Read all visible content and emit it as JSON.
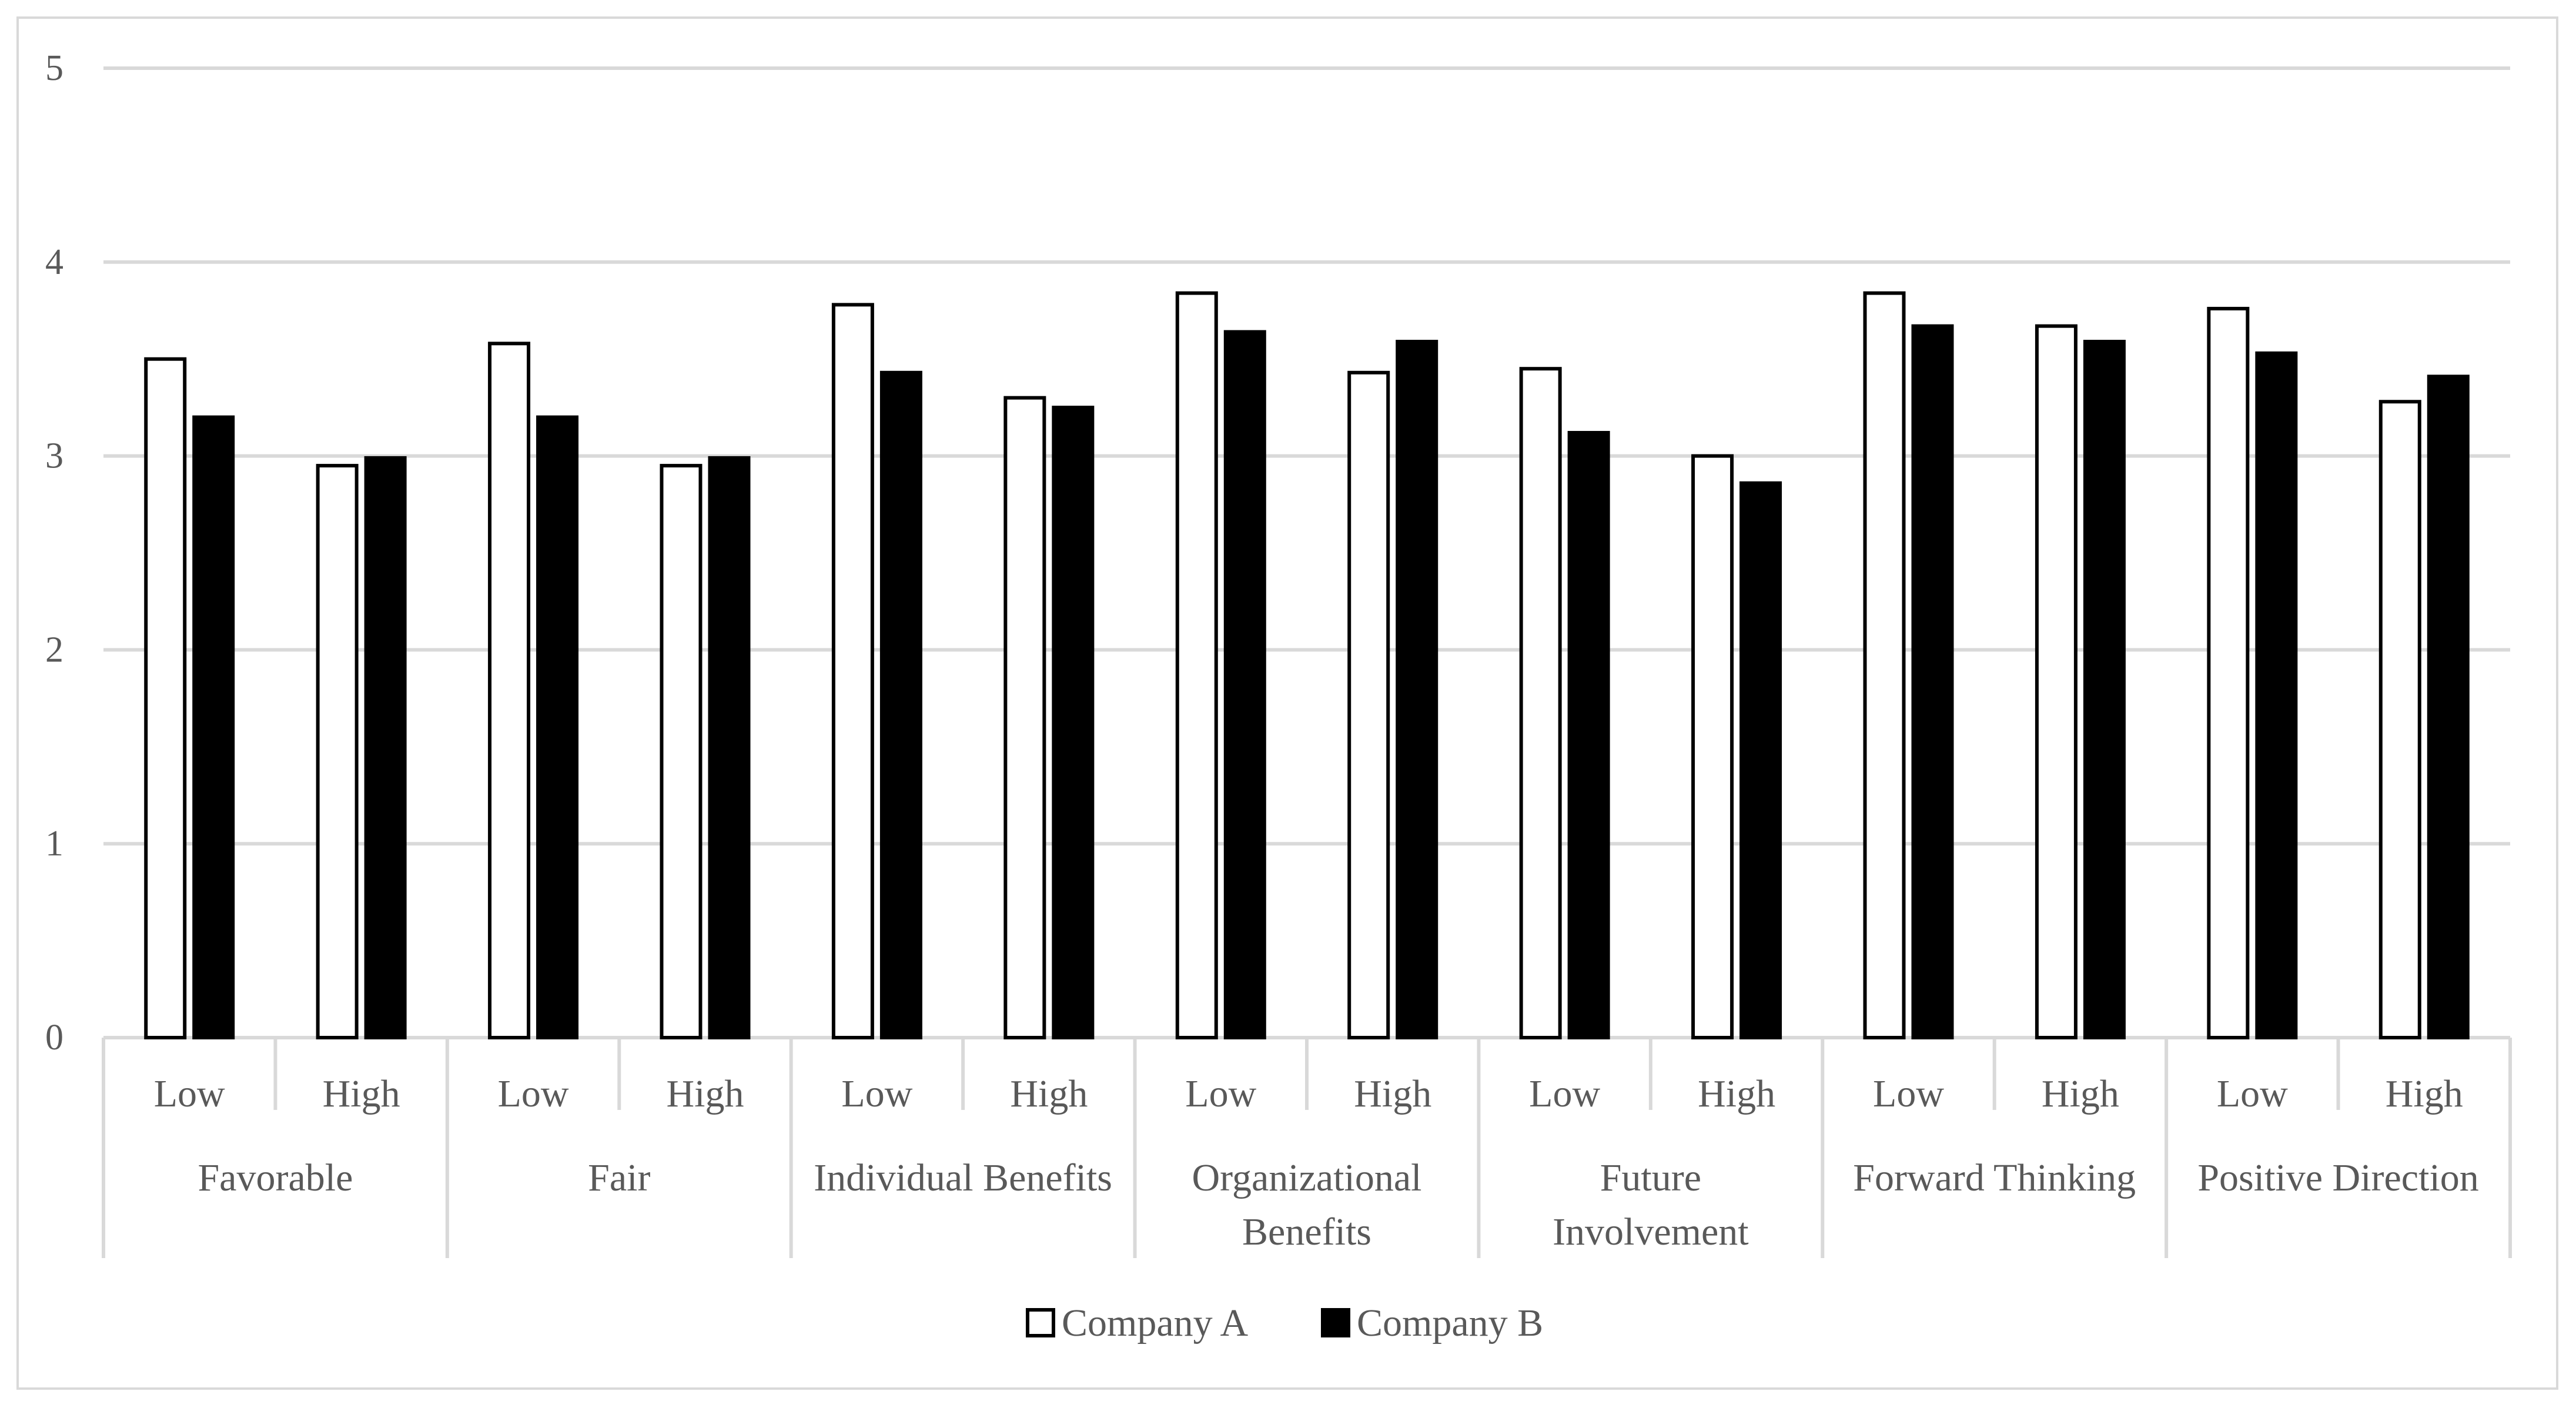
{
  "chart_data": {
    "type": "bar",
    "title": "",
    "xlabel": "",
    "ylabel": "",
    "ylim": [
      0,
      5
    ],
    "yticks": [
      0,
      1,
      2,
      3,
      4,
      5
    ],
    "grid": true,
    "legend_position": "bottom",
    "groups": [
      {
        "label": "Favorable",
        "lines": [
          "Favorable"
        ],
        "subcategories": [
          "Low",
          "High"
        ]
      },
      {
        "label": "Fair",
        "lines": [
          "Fair"
        ],
        "subcategories": [
          "Low",
          "High"
        ]
      },
      {
        "label": "Individual Benefits",
        "lines": [
          "Individual Benefits"
        ],
        "subcategories": [
          "Low",
          "High"
        ]
      },
      {
        "label": "Organizational Benefits",
        "lines": [
          "Organizational",
          "Benefits"
        ],
        "subcategories": [
          "Low",
          "High"
        ]
      },
      {
        "label": "Future Involvement",
        "lines": [
          "Future",
          "Involvement"
        ],
        "subcategories": [
          "Low",
          "High"
        ]
      },
      {
        "label": "Forward Thinking",
        "lines": [
          "Forward Thinking"
        ],
        "subcategories": [
          "Low",
          "High"
        ]
      },
      {
        "label": "Positive Direction",
        "lines": [
          "Positive Direction"
        ],
        "subcategories": [
          "Low",
          "High"
        ]
      }
    ],
    "series": [
      {
        "name": "Company A",
        "fill": "#ffffff",
        "stroke": "#000000",
        "values": [
          3.5,
          2.95,
          3.58,
          2.95,
          3.78,
          3.3,
          3.84,
          3.43,
          3.45,
          3.0,
          3.84,
          3.67,
          3.76,
          3.28
        ]
      },
      {
        "name": "Company B",
        "fill": "#000000",
        "stroke": "#000000",
        "values": [
          3.2,
          2.99,
          3.2,
          2.99,
          3.43,
          3.25,
          3.64,
          3.59,
          3.12,
          2.86,
          3.67,
          3.59,
          3.53,
          3.41
        ]
      }
    ],
    "colors": {
      "grid": "#d9d9d9",
      "axis": "#d9d9d9",
      "text": "#595959"
    }
  }
}
